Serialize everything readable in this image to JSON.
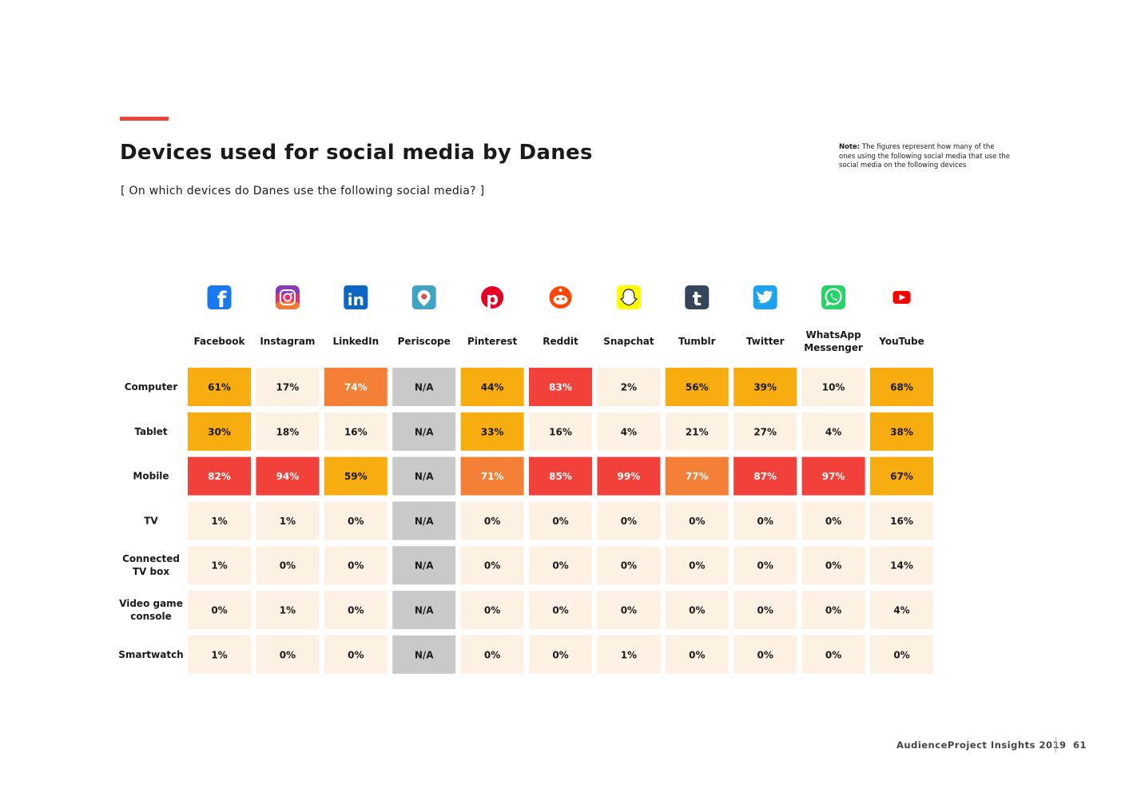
{
  "header": {
    "title": "Devices used for social media by Danes",
    "subtitle": "[ On which devices do Danes use the following social media? ]",
    "note_label": "Note:",
    "note_text": "The figures represent how many of the ones using the following social media that use the social media on the following devices"
  },
  "footer": {
    "publication": "AudienceProject Insights 2019",
    "page_number": "61"
  },
  "colors": {
    "accent": "#e8473a",
    "low": "#fdf1e3",
    "mid": "#f7ac0f",
    "high": "#f47f36",
    "top": "#f2413a",
    "na": "#c9c9c9"
  },
  "chart_data": {
    "type": "heatmap",
    "title": "Devices used for social media by Danes",
    "subtitle": "[ On which devices do Danes use the following social media? ]",
    "unit": "%",
    "columns": [
      {
        "name": "Facebook",
        "icon": "facebook-icon"
      },
      {
        "name": "Instagram",
        "icon": "instagram-icon"
      },
      {
        "name": "LinkedIn",
        "icon": "linkedin-icon"
      },
      {
        "name": "Periscope",
        "icon": "periscope-icon"
      },
      {
        "name": "Pinterest",
        "icon": "pinterest-icon"
      },
      {
        "name": "Reddit",
        "icon": "reddit-icon"
      },
      {
        "name": "Snapchat",
        "icon": "snapchat-icon"
      },
      {
        "name": "Tumblr",
        "icon": "tumblr-icon"
      },
      {
        "name": "Twitter",
        "icon": "twitter-icon"
      },
      {
        "name": "WhatsApp Messenger",
        "icon": "whatsapp-icon"
      },
      {
        "name": "YouTube",
        "icon": "youtube-icon"
      }
    ],
    "rows": [
      "Computer",
      "Tablet",
      "Mobile",
      "TV",
      "Connected TV box",
      "Video game console",
      "Smartwatch"
    ],
    "values": [
      [
        61,
        17,
        74,
        null,
        44,
        83,
        2,
        56,
        39,
        10,
        68
      ],
      [
        30,
        18,
        16,
        null,
        33,
        16,
        4,
        21,
        27,
        4,
        38
      ],
      [
        82,
        94,
        59,
        null,
        71,
        85,
        99,
        77,
        87,
        97,
        67
      ],
      [
        1,
        1,
        0,
        null,
        0,
        0,
        0,
        0,
        0,
        0,
        16
      ],
      [
        1,
        0,
        0,
        null,
        0,
        0,
        0,
        0,
        0,
        0,
        14
      ],
      [
        0,
        1,
        0,
        null,
        0,
        0,
        0,
        0,
        0,
        0,
        4
      ],
      [
        1,
        0,
        0,
        null,
        0,
        0,
        1,
        0,
        0,
        0,
        0
      ]
    ],
    "missing_label": "N/A"
  }
}
